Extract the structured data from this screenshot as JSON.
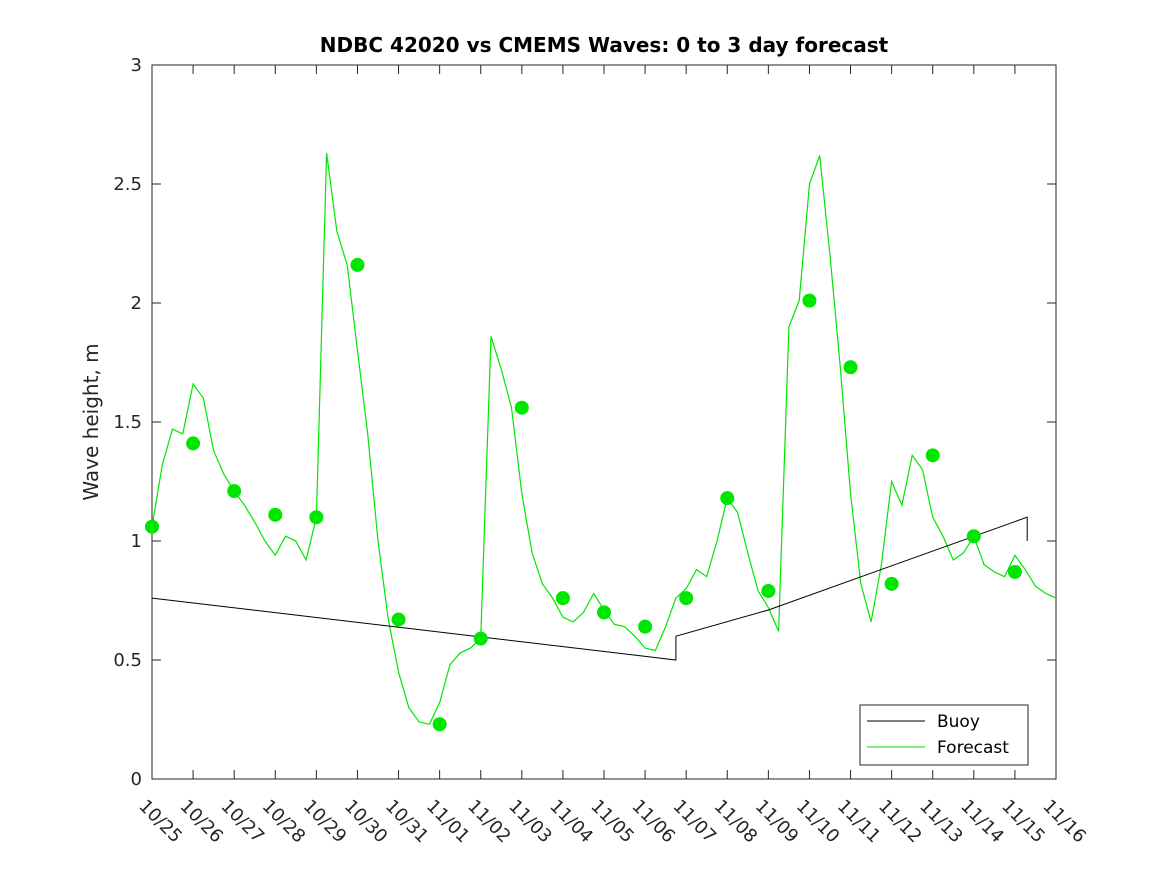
{
  "chart_data": {
    "type": "line",
    "title": "NDBC 42020 vs CMEMS Waves: 0 to 3 day forecast",
    "xlabel": "",
    "ylabel": "Wave height, m",
    "ylim": [
      0,
      3
    ],
    "xlim": [
      0,
      22
    ],
    "x_tick_labels": [
      "10/25",
      "10/26",
      "10/27",
      "10/28",
      "10/29",
      "10/30",
      "10/31",
      "11/01",
      "11/02",
      "11/03",
      "11/04",
      "11/05",
      "11/06",
      "11/07",
      "11/08",
      "11/09",
      "11/10",
      "11/11",
      "11/12",
      "11/13",
      "11/14",
      "11/15",
      "11/16"
    ],
    "y_ticks": [
      0,
      0.5,
      1,
      1.5,
      2,
      2.5,
      3
    ],
    "y_tick_labels": [
      "0",
      "0.5",
      "1",
      "1.5",
      "2",
      "2.5",
      "3"
    ],
    "grid": false,
    "legend_position": "bottom-right",
    "colors": {
      "buoy": "#000000",
      "forecast": "#00e600",
      "axis": "#262626"
    },
    "series": [
      {
        "name": "Buoy",
        "color": "#000000",
        "x": [
          0,
          12.75,
          12.75,
          15,
          21.3,
          21.3
        ],
        "y": [
          0.76,
          0.5,
          0.6,
          0.71,
          1.1,
          1.0
        ]
      },
      {
        "name": "Forecast",
        "color": "#00e600",
        "x": [
          0,
          0.25,
          0.5,
          0.75,
          1,
          1.25,
          1.5,
          1.75,
          2,
          2.25,
          2.5,
          2.75,
          3,
          3.25,
          3.5,
          3.75,
          4,
          4.25,
          4.5,
          4.75,
          5,
          5.25,
          5.5,
          5.75,
          6,
          6.25,
          6.5,
          6.75,
          7,
          7.25,
          7.5,
          7.75,
          8,
          8.25,
          8.5,
          8.75,
          9,
          9.25,
          9.5,
          9.75,
          10,
          10.25,
          10.5,
          10.75,
          11,
          11.25,
          11.5,
          11.75,
          12,
          12.25,
          12.5,
          12.75,
          13,
          13.25,
          13.5,
          13.75,
          14,
          14.25,
          14.5,
          14.75,
          15,
          15.25,
          15.5,
          15.75,
          16,
          16.25,
          16.5,
          16.75,
          17,
          17.25,
          17.5,
          17.75,
          18,
          18.25,
          18.5,
          18.75,
          19,
          19.25,
          19.5,
          19.75,
          20,
          20.25,
          20.5,
          20.75,
          21,
          21.25,
          21.5,
          21.75,
          22
        ],
        "y": [
          1.06,
          1.32,
          1.47,
          1.45,
          1.66,
          1.6,
          1.38,
          1.28,
          1.21,
          1.15,
          1.08,
          1.0,
          0.94,
          1.02,
          1.0,
          0.92,
          1.1,
          2.63,
          2.3,
          2.16,
          1.8,
          1.45,
          1.0,
          0.67,
          0.45,
          0.3,
          0.24,
          0.23,
          0.32,
          0.48,
          0.53,
          0.55,
          0.59,
          1.86,
          1.72,
          1.56,
          1.2,
          0.95,
          0.82,
          0.76,
          0.68,
          0.66,
          0.7,
          0.78,
          0.71,
          0.65,
          0.64,
          0.6,
          0.55,
          0.54,
          0.64,
          0.76,
          0.8,
          0.88,
          0.85,
          1.0,
          1.18,
          1.12,
          0.95,
          0.79,
          0.72,
          0.62,
          1.9,
          2.01,
          2.5,
          2.62,
          2.2,
          1.73,
          1.2,
          0.82,
          0.66,
          0.9,
          1.25,
          1.15,
          1.36,
          1.3,
          1.1,
          1.02,
          0.92,
          0.95,
          1.02,
          0.9,
          0.87,
          0.85,
          0.94,
          0.88,
          0.81,
          0.78,
          0.76
        ],
        "markers": {
          "x": [
            0,
            1,
            2,
            3,
            4,
            5,
            6,
            7,
            8,
            9,
            10,
            11,
            12,
            13,
            14,
            15,
            16,
            17,
            18,
            19,
            20,
            21
          ],
          "y": [
            1.06,
            1.41,
            1.21,
            1.11,
            1.1,
            2.16,
            0.67,
            0.23,
            0.59,
            1.56,
            0.76,
            0.7,
            0.64,
            0.76,
            1.18,
            0.79,
            2.01,
            1.73,
            0.82,
            1.36,
            1.02,
            0.87
          ]
        }
      }
    ],
    "legend": [
      {
        "label": "Buoy",
        "color": "#000000"
      },
      {
        "label": "Forecast",
        "color": "#00e600"
      }
    ]
  }
}
